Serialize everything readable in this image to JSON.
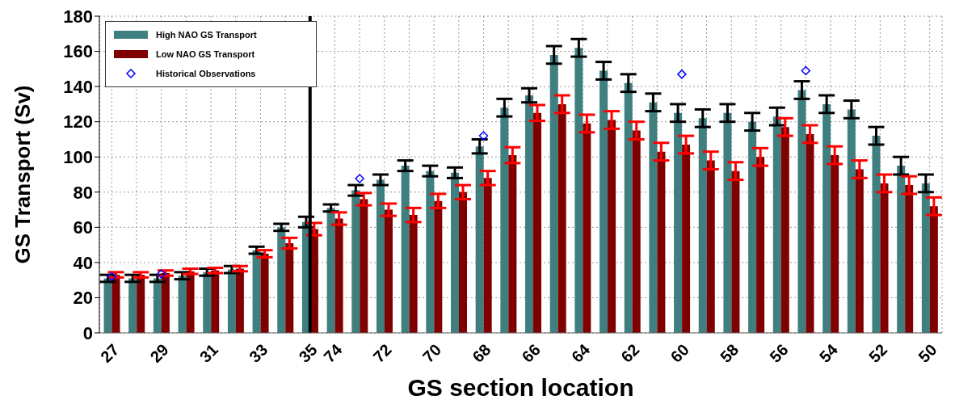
{
  "chart_data": {
    "type": "bar",
    "xlabel": "GS section location",
    "ylabel": "GS Transport (Sv)",
    "categories": [
      "27",
      null,
      "29",
      null,
      "31",
      null,
      "33",
      null,
      "35",
      "74",
      null,
      "72",
      null,
      "70",
      null,
      "68",
      null,
      "66",
      null,
      "64",
      null,
      "62",
      null,
      "60",
      null,
      "58",
      null,
      "56",
      null,
      "54",
      null,
      "52",
      null,
      "50"
    ],
    "series": [
      {
        "name": "High NAO GS Transport",
        "color": "#3f7f7f",
        "values": [
          31,
          31,
          31,
          32.5,
          34.5,
          36,
          47,
          60,
          63,
          71,
          81,
          87,
          95,
          92,
          91,
          106,
          128,
          135,
          158,
          162,
          149,
          142,
          131,
          125,
          122,
          125,
          120,
          123,
          138,
          130,
          127,
          112,
          95,
          85
        ],
        "errors": [
          2,
          2,
          2,
          2,
          2,
          2,
          2,
          2,
          3,
          2,
          3,
          3,
          3,
          3,
          3,
          4,
          5,
          4,
          5,
          5,
          5,
          5,
          5,
          5,
          5,
          5,
          5,
          5,
          5,
          5,
          5,
          5,
          5,
          5
        ]
      },
      {
        "name": "Low NAO GS Transport",
        "color": "#7f0000",
        "values": [
          33,
          33,
          34,
          35,
          35.5,
          36.5,
          45,
          51,
          59,
          65,
          76,
          70,
          67,
          75,
          80,
          88,
          101,
          125,
          130,
          119,
          121,
          115,
          103,
          107,
          98,
          92,
          100,
          117,
          113,
          101,
          93,
          85,
          84,
          72
        ],
        "errors": [
          1.5,
          1.5,
          1.5,
          1.5,
          1.5,
          1.5,
          2,
          3,
          3.5,
          3.5,
          3.5,
          3.5,
          4,
          4,
          4,
          4,
          4.5,
          4.5,
          5,
          5,
          5,
          5,
          5,
          5,
          5,
          5,
          5,
          5,
          5,
          5,
          5,
          5,
          5,
          5
        ]
      },
      {
        "name": "Historical Observations",
        "type": "scatter",
        "color": "#0000ff",
        "marker": "diamond",
        "values": [
          32,
          null,
          33.5,
          null,
          null,
          null,
          null,
          null,
          null,
          null,
          87.7,
          null,
          null,
          null,
          null,
          112,
          null,
          null,
          null,
          null,
          null,
          null,
          null,
          147,
          null,
          null,
          null,
          null,
          149,
          null,
          null,
          null,
          null,
          null
        ]
      }
    ],
    "ylim": [
      0,
      180
    ],
    "yticks": [
      0,
      20,
      40,
      60,
      80,
      100,
      120,
      140,
      160,
      180
    ],
    "grid": true,
    "legend": "top left",
    "ref_lines": [
      {
        "axis": "x",
        "value": "35",
        "color": "#000000"
      }
    ]
  }
}
